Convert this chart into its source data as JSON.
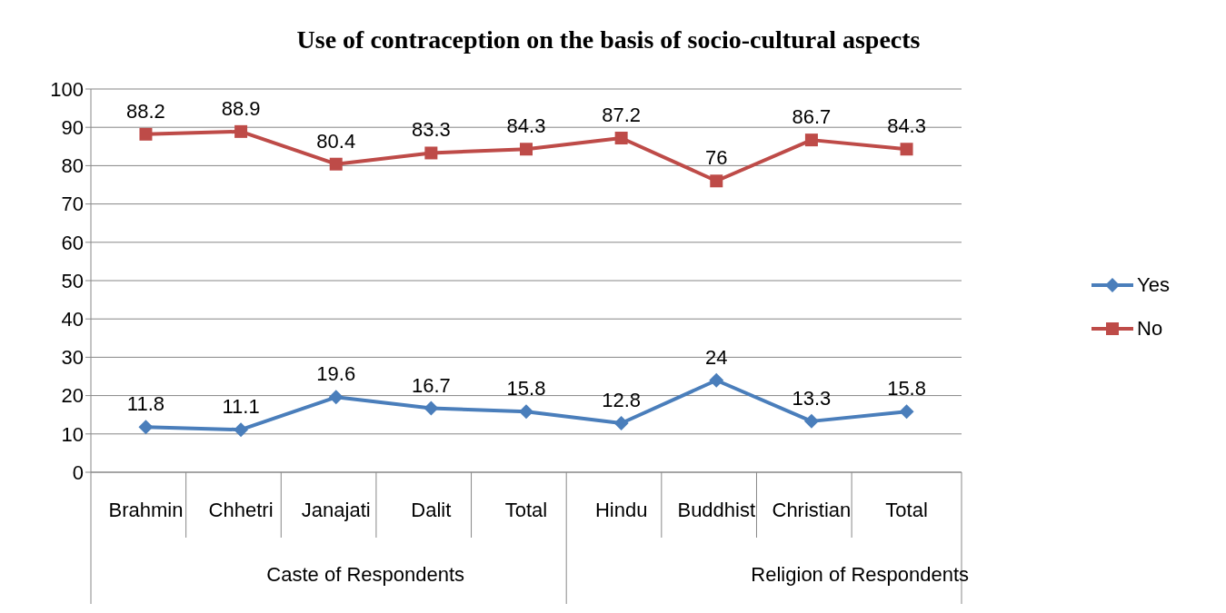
{
  "chart_data": {
    "type": "line",
    "title": "Use of contraception on the basis of socio-cultural aspects",
    "categories": [
      "Brahmin",
      "Chhetri",
      "Janajati",
      "Dalit",
      "Total",
      "Hindu",
      "Buddhist",
      "Christian",
      "Total"
    ],
    "series": [
      {
        "name": "Yes",
        "color": "#4a7ebb",
        "marker": "diamond",
        "values": [
          11.8,
          11.1,
          19.6,
          16.7,
          15.8,
          12.8,
          24,
          13.3,
          15.8
        ]
      },
      {
        "name": "No",
        "color": "#be4b48",
        "marker": "square",
        "values": [
          88.2,
          88.9,
          80.4,
          83.3,
          84.3,
          87.2,
          76,
          86.7,
          84.3
        ]
      }
    ],
    "annotations": [
      "Caste of Respondents",
      "Religion of Respondents"
    ],
    "ylim": [
      0,
      100
    ],
    "yticks": [
      0,
      10,
      20,
      30,
      40,
      50,
      60,
      70,
      80,
      90,
      100
    ],
    "grid": "y",
    "legend": "right",
    "data_labels": true
  }
}
